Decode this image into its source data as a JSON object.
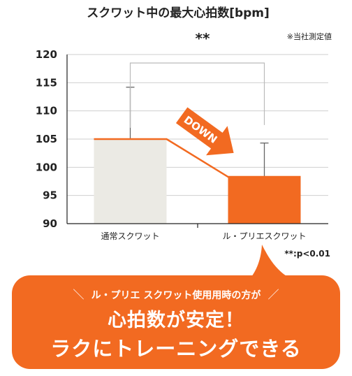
{
  "chart_data": {
    "type": "bar",
    "title": "スクワット中の最大心拍数[bpm]",
    "source_note": "※当社測定値",
    "categories": [
      "通常スクワット",
      "ル・プリエスクワット"
    ],
    "values": [
      105,
      98.3
    ],
    "error_upper": [
      114.2,
      104.3
    ],
    "ylim": [
      90,
      120
    ],
    "yticks": [
      90,
      95,
      100,
      105,
      110,
      115,
      120
    ],
    "grid": true,
    "significance": "**",
    "p_note": "**:p<0.01",
    "arrow_label": "DOWN",
    "colors": {
      "bar1": "#ebeae4",
      "bar2": "#f26a21",
      "accent": "#f26a21",
      "grid": "#cfcfcf",
      "bracket": "#bbbbbb"
    }
  },
  "callout": {
    "lead": "ル・プリエ スクワット使用用時の方が",
    "line1": "心拍数が安定！",
    "line2": "ラクにトレーニングできる"
  }
}
